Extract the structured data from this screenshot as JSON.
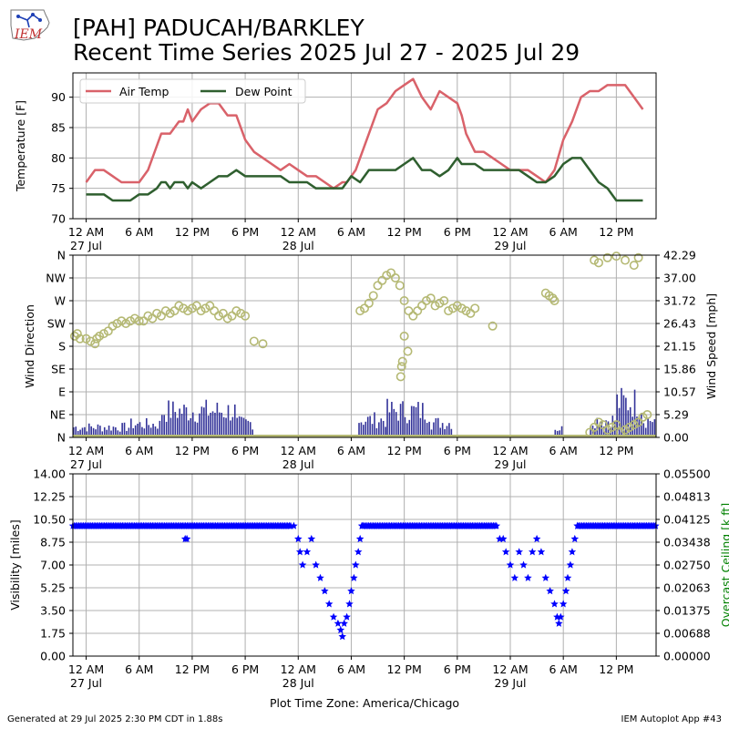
{
  "header": {
    "title_line1": "[PAH] PADUCAH/BARKLEY",
    "title_line2": "Recent Time Series 2025 Jul 27 - 2025 Jul 29",
    "logo_text": "IEM"
  },
  "footer": {
    "generated": "Generated at 29 Jul 2025 2:30 PM CDT in 1.88s",
    "app": "IEM Autoplot App #43",
    "timezone_label": "Plot Time Zone: America/Chicago"
  },
  "colors": {
    "air_temp": "#d9626a",
    "dew_point": "#2f5f2f",
    "wind_dir": "#b5b974",
    "wind_speed": "#333399",
    "visibility": "#0000ff",
    "ceiling_axis": "#008000",
    "grid": "#b0b0b0"
  },
  "x_axis": {
    "hours": [
      -1.5,
      64.5
    ],
    "ticks": [
      {
        "h": 0,
        "label": "12 AM",
        "date": "27 Jul"
      },
      {
        "h": 6,
        "label": "6 AM",
        "date": ""
      },
      {
        "h": 12,
        "label": "12 PM",
        "date": ""
      },
      {
        "h": 18,
        "label": "6 PM",
        "date": ""
      },
      {
        "h": 24,
        "label": "12 AM",
        "date": "28 Jul"
      },
      {
        "h": 30,
        "label": "6 AM",
        "date": ""
      },
      {
        "h": 36,
        "label": "12 PM",
        "date": ""
      },
      {
        "h": 42,
        "label": "6 PM",
        "date": ""
      },
      {
        "h": 48,
        "label": "12 AM",
        "date": "29 Jul"
      },
      {
        "h": 54,
        "label": "6 AM",
        "date": ""
      },
      {
        "h": 60,
        "label": "12 PM",
        "date": ""
      }
    ]
  },
  "chart_data": [
    {
      "type": "line",
      "x_unit": "hours since 27 Jul 12 AM",
      "ylabel": "Temperature [F]",
      "ylim": [
        70,
        94
      ],
      "yticks": [
        70,
        75,
        80,
        85,
        90
      ],
      "grid": true,
      "legend": "top-left",
      "series": [
        {
          "name": "Air Temp",
          "x": [
            0,
            1,
            2,
            3,
            4,
            5,
            6,
            7,
            8,
            8.5,
            9,
            9.5,
            10,
            10.5,
            11,
            11.5,
            12,
            12.5,
            13,
            14,
            15,
            16,
            17,
            18,
            18.5,
            19,
            20,
            21,
            22,
            23,
            24,
            25,
            26,
            27,
            28,
            29,
            29.5,
            30,
            30.5,
            31,
            32,
            33,
            34,
            35,
            36,
            37,
            38,
            38.5,
            39,
            40,
            41,
            42,
            42.5,
            43,
            44,
            45,
            46,
            47,
            48,
            49,
            50,
            51,
            52,
            53,
            54,
            55,
            56,
            57,
            58,
            59,
            60,
            61,
            62,
            63
          ],
          "y": [
            76,
            78,
            78,
            77,
            76,
            76,
            76,
            78,
            82,
            84,
            84,
            84,
            85,
            86,
            86,
            88,
            86,
            87,
            88,
            89,
            89,
            87,
            87,
            83,
            82,
            81,
            80,
            79,
            78,
            79,
            78,
            77,
            77,
            76,
            75,
            76,
            76,
            77,
            78,
            80,
            84,
            88,
            89,
            91,
            92,
            93,
            90,
            89,
            88,
            91,
            90,
            89,
            87,
            84,
            81,
            81,
            80,
            79,
            78,
            78,
            78,
            77,
            76,
            78,
            83,
            86,
            90,
            91,
            91,
            92,
            92,
            92,
            90,
            88
          ],
          "color_key": "air_temp"
        },
        {
          "name": "Dew Point",
          "x": [
            0,
            1,
            2,
            3,
            4,
            5,
            6,
            7,
            8,
            8.5,
            9,
            9.5,
            10,
            11,
            11.5,
            12,
            13,
            14,
            15,
            16,
            17,
            18,
            19,
            20,
            21,
            22,
            23,
            24,
            25,
            26,
            27,
            28,
            29,
            30,
            31,
            32,
            33,
            34,
            35,
            36,
            37,
            38,
            39,
            40,
            41,
            42,
            42.5,
            43,
            44,
            45,
            46,
            47,
            48,
            49,
            50,
            51,
            52,
            53,
            54,
            55,
            56,
            57,
            58,
            59,
            60,
            61,
            62,
            63
          ],
          "y": [
            74,
            74,
            74,
            73,
            73,
            73,
            74,
            74,
            75,
            76,
            76,
            75,
            76,
            76,
            75,
            76,
            75,
            76,
            77,
            77,
            78,
            77,
            77,
            77,
            77,
            77,
            76,
            76,
            76,
            75,
            75,
            75,
            75,
            77,
            76,
            78,
            78,
            78,
            78,
            79,
            80,
            78,
            78,
            77,
            78,
            80,
            79,
            79,
            79,
            78,
            78,
            78,
            78,
            78,
            77,
            76,
            76,
            77,
            79,
            80,
            80,
            78,
            76,
            75,
            73,
            73,
            73,
            73
          ],
          "color_key": "dew_point"
        }
      ]
    },
    {
      "type": "scatter",
      "ylabel": "Wind Direction",
      "ylabel_right": "Wind Speed [mph]",
      "direction_ticks": [
        "N",
        "NE",
        "E",
        "SE",
        "S",
        "SW",
        "W",
        "NW",
        "N"
      ],
      "speed_ticks": [
        "0.00",
        "5.29",
        "10.57",
        "15.86",
        "21.15",
        "26.43",
        "31.72",
        "37.00",
        "42.29"
      ],
      "speed_ylim": [
        0,
        42.29
      ],
      "direction_series": {
        "name": "Wind Direction",
        "points": [
          [
            -1.3,
            200
          ],
          [
            -1,
            205
          ],
          [
            -0.7,
            195
          ],
          [
            0,
            195
          ],
          [
            0.5,
            190
          ],
          [
            1,
            185
          ],
          [
            1.2,
            195
          ],
          [
            1.5,
            200
          ],
          [
            2,
            205
          ],
          [
            2.5,
            210
          ],
          [
            3,
            220
          ],
          [
            3.5,
            225
          ],
          [
            4,
            230
          ],
          [
            4.5,
            225
          ],
          [
            5,
            230
          ],
          [
            5.5,
            235
          ],
          [
            6,
            230
          ],
          [
            6.5,
            230
          ],
          [
            7,
            240
          ],
          [
            7.5,
            235
          ],
          [
            8,
            245
          ],
          [
            8.5,
            240
          ],
          [
            9,
            250
          ],
          [
            9.5,
            245
          ],
          [
            10,
            250
          ],
          [
            10.5,
            260
          ],
          [
            11,
            255
          ],
          [
            11.5,
            250
          ],
          [
            12,
            255
          ],
          [
            12.5,
            260
          ],
          [
            13,
            250
          ],
          [
            13.5,
            255
          ],
          [
            14,
            260
          ],
          [
            14.5,
            250
          ],
          [
            15,
            240
          ],
          [
            15.5,
            245
          ],
          [
            16,
            235
          ],
          [
            16.5,
            240
          ],
          [
            17,
            250
          ],
          [
            17.5,
            245
          ],
          [
            18,
            240
          ],
          [
            19,
            190
          ],
          [
            20,
            185
          ],
          [
            31,
            250
          ],
          [
            31.5,
            255
          ],
          [
            32,
            265
          ],
          [
            32.5,
            280
          ],
          [
            33,
            300
          ],
          [
            33.5,
            310
          ],
          [
            34,
            320
          ],
          [
            34.5,
            325
          ],
          [
            35,
            315
          ],
          [
            35.5,
            300
          ],
          [
            36,
            270
          ],
          [
            36.5,
            250
          ],
          [
            37,
            240
          ],
          [
            37.5,
            250
          ],
          [
            38,
            260
          ],
          [
            38.5,
            270
          ],
          [
            39,
            275
          ],
          [
            39.5,
            260
          ],
          [
            40,
            265
          ],
          [
            40.5,
            270
          ],
          [
            41,
            250
          ],
          [
            41.5,
            255
          ],
          [
            42,
            260
          ],
          [
            42.5,
            255
          ],
          [
            43,
            250
          ],
          [
            43.5,
            245
          ],
          [
            44,
            255
          ],
          [
            36,
            200
          ],
          [
            35.8,
            150
          ],
          [
            35.7,
            140
          ],
          [
            35.6,
            120
          ],
          [
            36.4,
            170
          ],
          [
            46,
            220
          ],
          [
            52,
            285
          ],
          [
            52.4,
            280
          ],
          [
            52.8,
            275
          ],
          [
            53,
            270
          ],
          [
            57.5,
            350
          ],
          [
            58,
            345
          ],
          [
            59,
            355
          ],
          [
            60,
            358
          ],
          [
            61,
            350
          ],
          [
            62,
            340
          ],
          [
            62.5,
            355
          ],
          [
            57,
            10
          ],
          [
            57.5,
            20
          ],
          [
            58,
            30
          ],
          [
            58.5,
            25
          ],
          [
            59,
            15
          ],
          [
            59.5,
            20
          ],
          [
            60,
            25
          ],
          [
            60.5,
            10
          ],
          [
            61,
            15
          ],
          [
            61.5,
            20
          ],
          [
            62,
            25
          ],
          [
            62.5,
            30
          ],
          [
            63,
            40
          ],
          [
            63.5,
            45
          ]
        ],
        "color_key": "wind_dir"
      },
      "speed_series": {
        "name": "Wind Speed",
        "color_key": "wind_speed",
        "segments": [
          {
            "from": -1.5,
            "to": 5,
            "max": 3.5
          },
          {
            "from": 5,
            "to": 8.5,
            "max": 4.5
          },
          {
            "from": 8.5,
            "to": 17,
            "max": 9
          },
          {
            "from": 17,
            "to": 19,
            "max": 5
          },
          {
            "from": 30.8,
            "to": 34,
            "max": 6
          },
          {
            "from": 34,
            "to": 39,
            "max": 9
          },
          {
            "from": 39,
            "to": 41.5,
            "max": 5
          },
          {
            "from": 53,
            "to": 54,
            "max": 3
          },
          {
            "from": 57,
            "to": 60,
            "max": 6
          },
          {
            "from": 60,
            "to": 63,
            "max": 12
          },
          {
            "from": 63,
            "to": 64.5,
            "max": 6
          }
        ]
      }
    },
    {
      "type": "scatter",
      "ylabel": "Visibility [miles]",
      "ylabel_right": "Overcast Ceiling [k ft]",
      "ylim": [
        0,
        14
      ],
      "yticks": [
        "0.00",
        "1.75",
        "3.50",
        "5.25",
        "7.00",
        "8.75",
        "10.50",
        "12.25",
        "14.00"
      ],
      "right_ticks": [
        "0.00000",
        "0.00688",
        "0.01375",
        "0.02063",
        "0.02750",
        "0.03438",
        "0.04125",
        "0.04813",
        "0.05500"
      ],
      "visibility_points": [
        [
          23.5,
          10
        ],
        [
          24,
          9
        ],
        [
          24.2,
          8
        ],
        [
          24.5,
          7
        ],
        [
          25,
          8
        ],
        [
          25.5,
          9
        ],
        [
          26,
          7
        ],
        [
          26.5,
          6
        ],
        [
          27,
          5
        ],
        [
          27.5,
          4
        ],
        [
          28,
          3
        ],
        [
          28.5,
          2.5
        ],
        [
          28.8,
          2
        ],
        [
          29,
          1.5
        ],
        [
          29.2,
          2.5
        ],
        [
          29.5,
          3
        ],
        [
          29.8,
          4
        ],
        [
          30,
          5
        ],
        [
          30.3,
          6
        ],
        [
          30.5,
          7
        ],
        [
          30.8,
          8
        ],
        [
          31,
          9
        ],
        [
          31.2,
          10
        ],
        [
          11.2,
          9
        ],
        [
          11.4,
          9
        ],
        [
          46.8,
          9
        ],
        [
          47.2,
          9
        ],
        [
          47.5,
          8
        ],
        [
          48,
          7
        ],
        [
          48.5,
          6
        ],
        [
          49,
          8
        ],
        [
          49.5,
          7
        ],
        [
          50,
          6
        ],
        [
          50.5,
          8
        ],
        [
          51,
          9
        ],
        [
          51.5,
          8
        ],
        [
          52,
          6
        ],
        [
          52.5,
          5
        ],
        [
          53,
          4
        ],
        [
          53.3,
          3
        ],
        [
          53.5,
          2.5
        ],
        [
          53.7,
          3
        ],
        [
          54,
          4
        ],
        [
          54.3,
          5
        ],
        [
          54.5,
          6
        ],
        [
          54.8,
          7
        ],
        [
          55,
          8
        ],
        [
          55.3,
          9
        ],
        [
          55.6,
          10
        ]
      ],
      "visibility_ranges": [
        {
          "from": -1.5,
          "to": 23.3,
          "value": 10
        },
        {
          "from": 31.3,
          "to": 46.5,
          "value": 10
        },
        {
          "from": 55.6,
          "to": 64.5,
          "value": 10
        }
      ],
      "color_key": "visibility"
    }
  ]
}
